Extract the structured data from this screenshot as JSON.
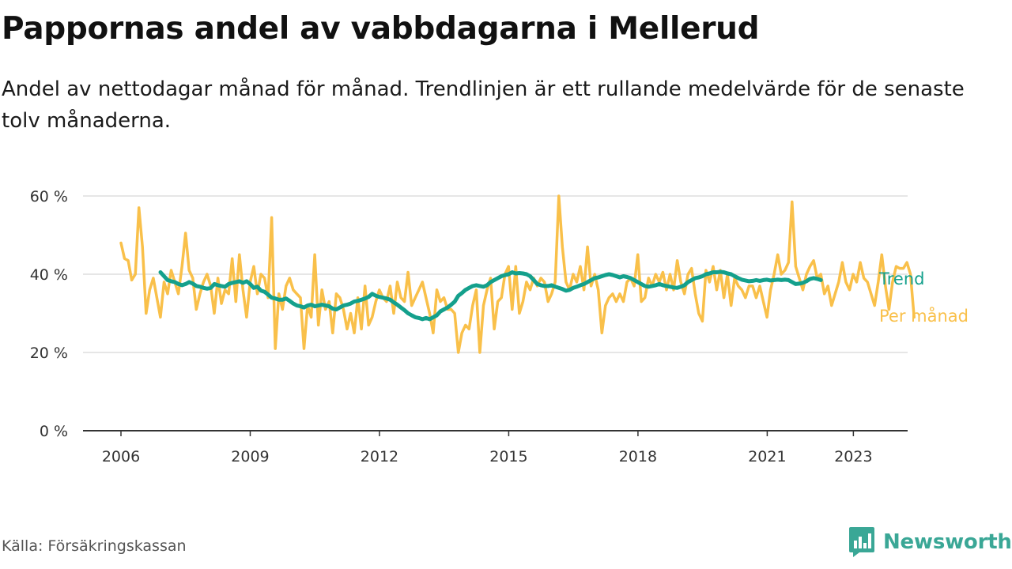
{
  "title": "Pappornas andel av vabbdagarna i Mellerud",
  "subtitle": "Andel av nettodagar månad för månad. Trendlinjen är ett rullande medelvärde för de senaste tolv månaderna.",
  "source": "Källa: Försäkringskassan",
  "brand": {
    "name": "Newsworthy",
    "icon": "bar-chart-logo-icon",
    "color": "#3aa796"
  },
  "chart_data": {
    "type": "line",
    "xlim": [
      2006,
      2025
    ],
    "ylim": [
      0,
      60
    ],
    "x_ticks": [
      2006,
      2009,
      2012,
      2015,
      2018,
      2021,
      2023
    ],
    "y_ticks": [
      0,
      20,
      40,
      60
    ],
    "y_tick_labels": [
      "0 %",
      "20 %",
      "40 %",
      "60 %"
    ],
    "grid": true,
    "legend": "inline-right",
    "series": [
      {
        "name": "Per månad",
        "color": "#f9c04a",
        "start": 2006.0,
        "step": 0.0833,
        "values": [
          48,
          44,
          43.5,
          38.5,
          40,
          57,
          47,
          30,
          36,
          39,
          34,
          29,
          38,
          35,
          41,
          38,
          35,
          42,
          50.5,
          41,
          39,
          31,
          35,
          38,
          40,
          37,
          30,
          39,
          32.5,
          36,
          35,
          44,
          33,
          45,
          36,
          29,
          38,
          42,
          35,
          40,
          39,
          34,
          54.5,
          21,
          35,
          31,
          37,
          39,
          36,
          35,
          34,
          21,
          32,
          29,
          45,
          27,
          36,
          31,
          33,
          25,
          35,
          34,
          31,
          26,
          30,
          25,
          34,
          26,
          37,
          27,
          29,
          33,
          36,
          34,
          33,
          37,
          30,
          38,
          34,
          33,
          40.5,
          32,
          34,
          36,
          38,
          34,
          30,
          25,
          36,
          33,
          34,
          31,
          31,
          30,
          20,
          25,
          27,
          26,
          32,
          36,
          20,
          32,
          36,
          39,
          26,
          33,
          34,
          40,
          42,
          31,
          42,
          30,
          33,
          38,
          36,
          39,
          37,
          39,
          38,
          33,
          35,
          38,
          60,
          47,
          38,
          36,
          40,
          38,
          42,
          36,
          47,
          37,
          40,
          36,
          25,
          32,
          34,
          35,
          33,
          35,
          33,
          38,
          39,
          37,
          45,
          33,
          34,
          39,
          37,
          40,
          38,
          40.5,
          36,
          40,
          36,
          43.5,
          38,
          35,
          40,
          41.5,
          35,
          30,
          28,
          41,
          38,
          42,
          36,
          41,
          34,
          40,
          32,
          39,
          37,
          36,
          34,
          37,
          37,
          34,
          37,
          33,
          29,
          36,
          40,
          45,
          40,
          41,
          43,
          58.5,
          42,
          39,
          36,
          40,
          42,
          43.5,
          39,
          40,
          35,
          37,
          32,
          35,
          38,
          43,
          38,
          36,
          40,
          38,
          43,
          39,
          38,
          35,
          32,
          38,
          45,
          37,
          31,
          38,
          42,
          41.5,
          41.5,
          43,
          40,
          29
        ]
      },
      {
        "name": "Trend",
        "color": "#14a08c",
        "start": 2006.917,
        "step": 0.0833,
        "values": [
          40.5,
          39.5,
          38.5,
          38.2,
          38,
          37.5,
          37.2,
          37.5,
          38,
          37.6,
          37,
          36.8,
          36.5,
          36.3,
          36.5,
          37.5,
          37.2,
          37,
          36.8,
          37.5,
          37.8,
          38,
          38.2,
          37.8,
          38.2,
          37.5,
          36.5,
          36.8,
          35.8,
          35.5,
          34.8,
          34,
          33.8,
          33.5,
          33.5,
          33.8,
          33.2,
          32.5,
          32,
          31.8,
          31.5,
          32,
          32.2,
          31.8,
          32,
          32.2,
          32,
          31.8,
          31.2,
          31,
          31.5,
          32,
          32.2,
          32.5,
          33,
          33.2,
          33.5,
          33.8,
          34.2,
          35,
          34.5,
          34.2,
          34,
          33.8,
          33.5,
          32.8,
          32.2,
          31.5,
          30.8,
          30,
          29.5,
          29,
          28.8,
          28.5,
          28.8,
          28.5,
          29,
          29.5,
          30.5,
          31,
          31.5,
          32.2,
          33,
          34.5,
          35.2,
          36,
          36.5,
          37,
          37.2,
          37,
          36.8,
          37.2,
          38,
          38.5,
          39,
          39.5,
          39.8,
          40,
          40.5,
          40.2,
          40.3,
          40.2,
          40,
          39.5,
          38.5,
          37.5,
          37.2,
          37,
          37,
          37.2,
          36.8,
          36.5,
          36.2,
          35.8,
          36,
          36.5,
          36.8,
          37.2,
          37.5,
          38,
          38.5,
          39,
          39.2,
          39.5,
          39.8,
          40,
          39.8,
          39.5,
          39.2,
          39.5,
          39.3,
          39,
          38.5,
          38,
          37.5,
          37,
          36.8,
          37,
          37.2,
          37.5,
          37.2,
          37,
          36.8,
          36.6,
          36.5,
          36.8,
          37.2,
          38,
          38.5,
          39,
          39.2,
          39.5,
          40,
          40.2,
          40.5,
          40.5,
          40.6,
          40.5,
          40.2,
          40,
          39.5,
          39,
          38.6,
          38.4,
          38.2,
          38.3,
          38.5,
          38.3,
          38.5,
          38.6,
          38.4,
          38.5,
          38.6,
          38.5,
          38.6,
          38.5,
          38,
          37.5,
          37.6,
          37.8,
          38.2,
          38.8,
          39,
          38.8,
          38.5
        ]
      }
    ]
  }
}
